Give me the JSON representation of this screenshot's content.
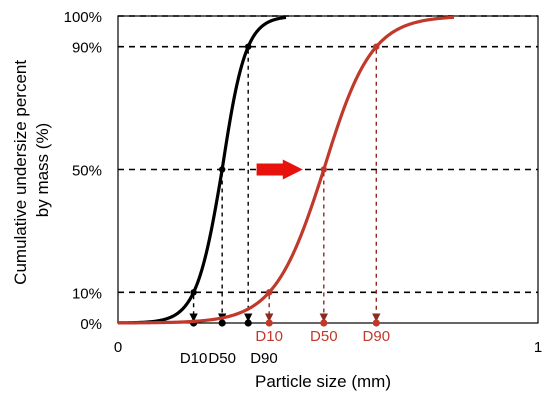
{
  "chart_data": {
    "type": "line",
    "xlabel": "Particle size (mm)",
    "ylabel_lines": [
      "Cumulative undersize percent",
      "by mass (%)"
    ],
    "xlim": [
      0,
      1
    ],
    "ylim": [
      0,
      100
    ],
    "x_ticks": [
      {
        "value": 0,
        "label": "0"
      },
      {
        "value": 1,
        "label": "1"
      }
    ],
    "y_ticks": [
      {
        "value": 0,
        "label": "0%"
      },
      {
        "value": 10,
        "label": "10%"
      },
      {
        "value": 50,
        "label": "50%"
      },
      {
        "value": 90,
        "label": "90%"
      },
      {
        "value": 100,
        "label": "100%"
      }
    ],
    "grid_y": [
      10,
      50,
      90,
      100
    ],
    "series": [
      {
        "color": "#000000",
        "d10": 0.18,
        "d50": 0.248,
        "d90": 0.31,
        "x_start": 0.0,
        "x_end": 0.4,
        "labels": [
          "D10",
          "D50",
          "D90"
        ],
        "dashed_guides": true
      },
      {
        "color": "#c0392b",
        "d10": 0.36,
        "d50": 0.49,
        "d90": 0.615,
        "x_start": 0.0,
        "x_end": 0.8,
        "labels": [
          "D10",
          "D50",
          "D90"
        ],
        "dashed_guides": true
      }
    ],
    "annotations": [
      {
        "type": "arrow",
        "color": "#e8120c",
        "at_y": 50,
        "x_from": 0.33,
        "x_to": 0.44
      }
    ]
  }
}
